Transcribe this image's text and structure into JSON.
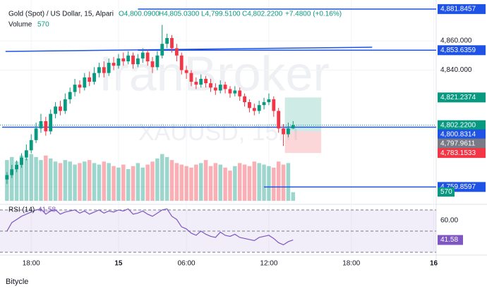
{
  "chart_data": {
    "type": "candlestick",
    "header": {
      "symbol": "Gold (Spot) / US Dollar, 15, Alpari",
      "open": "O4,800.0900",
      "high": "H4,805.0300",
      "low": "L4,799.5100",
      "close": "C4,802.2200",
      "change": "+7.4800 (+0.16%)",
      "volume_label": "Volume",
      "volume_value": "570"
    },
    "watermark": "IranBroker",
    "watermark_symbol": "XAUUSD, 15m",
    "open": [
      4765,
      4768,
      4772,
      4775,
      4780,
      4785,
      4792,
      4800,
      4805,
      4798,
      4810,
      4815,
      4812,
      4820,
      4825,
      4830,
      4828,
      4835,
      4832,
      4838,
      4842,
      4838,
      4845,
      4843,
      4848,
      4846,
      4850,
      4844,
      4848,
      4852,
      4846,
      4842,
      4850,
      4858,
      4862,
      4855,
      4850,
      4840,
      4838,
      4832,
      4830,
      4834,
      4831,
      4828,
      4826,
      4830,
      4827,
      4824,
      4826,
      4822,
      4818,
      4814,
      4812,
      4816,
      4818,
      4820,
      4812,
      4800,
      4796,
      4800.09
    ],
    "high": [
      4770,
      4775,
      4778,
      4783,
      4789,
      4796,
      4804,
      4810,
      4808,
      4813,
      4818,
      4819,
      4824,
      4828,
      4834,
      4833,
      4838,
      4839,
      4842,
      4845,
      4846,
      4848,
      4849,
      4851,
      4852,
      4853,
      4852,
      4851,
      4855,
      4854,
      4849,
      4853,
      4871,
      4865,
      4864,
      4858,
      4852,
      4843,
      4840,
      4835,
      4837,
      4836,
      4834,
      4831,
      4833,
      4832,
      4829,
      4829,
      4828,
      4824,
      4820,
      4817,
      4819,
      4821,
      4824,
      4822,
      4814,
      4803,
      4804,
      4805.03
    ],
    "low": [
      4762,
      4766,
      4770,
      4773,
      4778,
      4783,
      4790,
      4797,
      4795,
      4796,
      4807,
      4809,
      4810,
      4817,
      4822,
      4824,
      4826,
      4829,
      4830,
      4835,
      4835,
      4836,
      4840,
      4841,
      4843,
      4844,
      4841,
      4842,
      4845,
      4843,
      4838,
      4840,
      4848,
      4855,
      4852,
      4846,
      4837,
      4834,
      4829,
      4827,
      4828,
      4828,
      4825,
      4823,
      4824,
      4824,
      4821,
      4822,
      4819,
      4815,
      4811,
      4809,
      4810,
      4813,
      4816,
      4808,
      4797,
      4788,
      4794,
      4799.51
    ],
    "close": [
      4768,
      4772,
      4775,
      4780,
      4785,
      4792,
      4800,
      4805,
      4798,
      4810,
      4815,
      4812,
      4820,
      4825,
      4830,
      4828,
      4835,
      4832,
      4838,
      4842,
      4838,
      4845,
      4843,
      4848,
      4846,
      4850,
      4844,
      4848,
      4852,
      4846,
      4842,
      4850,
      4858,
      4862,
      4855,
      4850,
      4840,
      4838,
      4832,
      4830,
      4834,
      4831,
      4828,
      4826,
      4830,
      4827,
      4824,
      4826,
      4822,
      4818,
      4814,
      4812,
      4816,
      4818,
      4820,
      4812,
      4800,
      4796,
      4800,
      4802.22
    ],
    "volume": [
      2700,
      2900,
      2600,
      3000,
      2800,
      3100,
      2900,
      2700,
      3000,
      2800,
      2600,
      2500,
      2700,
      2600,
      2400,
      2500,
      2600,
      2700,
      2500,
      2400,
      2600,
      2500,
      2300,
      2200,
      2400,
      2100,
      2300,
      2500,
      2200,
      2400,
      2600,
      2800,
      3100,
      2900,
      2700,
      2500,
      2400,
      2300,
      2200,
      2400,
      2500,
      2700,
      2300,
      2500,
      2400,
      2200,
      2000,
      2300,
      2500,
      2400,
      2300,
      2600,
      2500,
      2400,
      2300,
      2200,
      2600,
      2400,
      2500,
      570
    ],
    "rsi": [
      50,
      58,
      61,
      64,
      66,
      68,
      70,
      71,
      66,
      69,
      70,
      66,
      68,
      69,
      70,
      67,
      69,
      66,
      68,
      70,
      67,
      69,
      68,
      70,
      69,
      71,
      66,
      67,
      69,
      66,
      64,
      67,
      70,
      71,
      64,
      61,
      54,
      52,
      48,
      46,
      50,
      47,
      45,
      44,
      49,
      46,
      45,
      47,
      44,
      43,
      42,
      41,
      44,
      45,
      46,
      43,
      39,
      37,
      40,
      41.58
    ],
    "rsi_label": "RSI (14)",
    "rsi_value": "41.58",
    "xlim": [
      -1,
      88.5
    ],
    "ylim": [
      4749.4,
      4884.2
    ],
    "vol_ylim": [
      0,
      3500
    ],
    "rsi_ylim": [
      27.3,
      75.3
    ],
    "yticks": [
      {
        "value": 4860,
        "label": "4,860.000"
      },
      {
        "value": 4840,
        "label": "4,840.000"
      },
      {
        "value": 4760,
        "label": "4,760.000"
      }
    ],
    "xticks": [
      {
        "value": 5,
        "label": "18:00"
      },
      {
        "value": 23,
        "label": "15"
      },
      {
        "value": 37,
        "label": "06:00"
      },
      {
        "value": 54,
        "label": "12:00"
      },
      {
        "value": 71,
        "label": "18:00"
      },
      {
        "value": 88,
        "label": "16"
      }
    ],
    "rsi_yticks": [
      {
        "value": 60,
        "label": "60.00"
      }
    ],
    "rsi_bands": [
      70,
      50,
      30
    ],
    "hlines": [
      {
        "value": 4881.8457,
        "start": 27
      },
      {
        "value": 4853.6359,
        "start": 27
      },
      {
        "value": 4800.8314,
        "start": -1
      },
      {
        "value": 4759.8597,
        "start": 53
      }
    ],
    "trendline": {
      "start": [
        -0.3,
        4852.8
      ],
      "end": [
        75.3,
        4855.7
      ]
    },
    "position": {
      "start": 57.3,
      "end": 64.8,
      "entry": 4797.9611,
      "take_profit": 4821.2374,
      "stop_loss": 4783.1533
    },
    "price_labels": [
      {
        "value": 4881.8457,
        "label": "4,881.8457",
        "color": "#1e53e5"
      },
      {
        "value": 4853.6359,
        "label": "4,853.6359",
        "color": "#1e53e5"
      },
      {
        "value": 4821.2374,
        "label": "4,821.2374",
        "color": "#089981"
      },
      {
        "value": 4802.22,
        "label": "4,802.2200",
        "color": "#089981"
      },
      {
        "value": 4800.8314,
        "label": "4,800.8314",
        "color": "#1e53e5"
      },
      {
        "value": 4797.9611,
        "label": "4,797.9611",
        "color": "#787b86"
      },
      {
        "value": 4783.1533,
        "label": "4,783.1533",
        "color": "#f23645"
      },
      {
        "value": 4759.8597,
        "label": "4,759.8597",
        "color": "#1e53e5"
      }
    ],
    "footer": "Bitycle"
  }
}
